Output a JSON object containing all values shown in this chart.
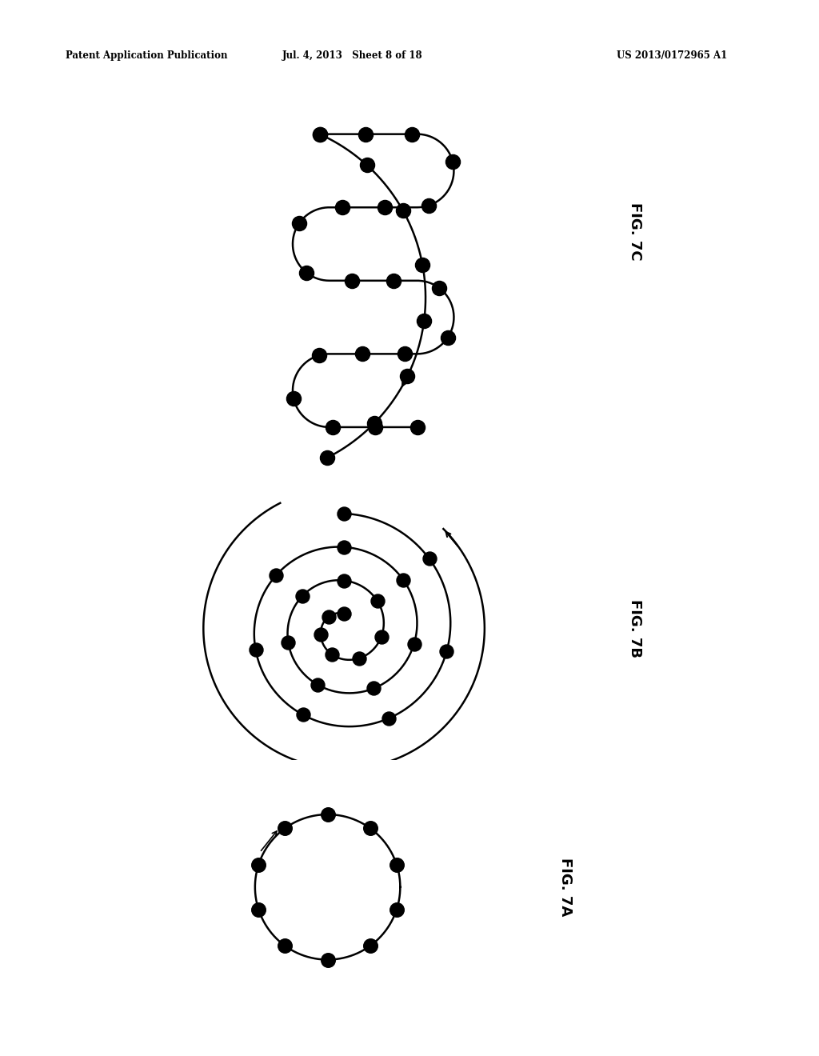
{
  "background_color": "#ffffff",
  "header_left": "Patent Application Publication",
  "header_mid": "Jul. 4, 2013   Sheet 8 of 18",
  "header_right": "US 2013/0172965 A1",
  "fig7A_label": "FIG. 7A",
  "fig7B_label": "FIG. 7B",
  "fig7C_label": "FIG. 7C",
  "dot_color": "#000000",
  "line_color": "#000000",
  "dot_size_7a": 160,
  "dot_size_7b": 150,
  "dot_size_7c": 170,
  "n_dots_7a": 10,
  "n_dots_7b": 22,
  "n_dots_7c_outer": 8,
  "n_dots_7c_inner": 20
}
